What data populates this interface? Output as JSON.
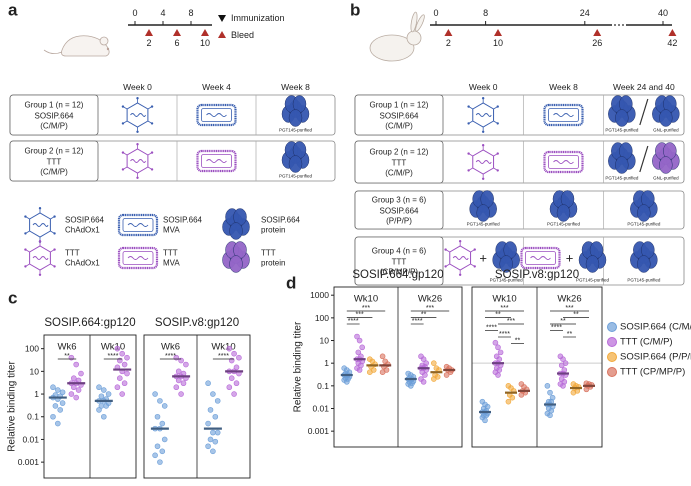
{
  "panel_a": {
    "label": "a",
    "immunization": [
      0,
      4,
      8
    ],
    "bleed": [
      2,
      6,
      10
    ],
    "legend": [
      "Immunization",
      "Bleed"
    ],
    "headers": [
      "Week 0",
      "Week 4",
      "Week 8"
    ],
    "groups": [
      {
        "name": "Group 1 (n = 12)",
        "vaccine": "SOSIP.664",
        "regimen": "(C/M/P)",
        "color": "#3a5fb0",
        "cells": [
          [],
          [],
          [
            "PGT145-purified"
          ]
        ]
      },
      {
        "name": "Group 2 (n = 12)",
        "vaccine": "TTT",
        "regimen": "(C/M/P)",
        "color": "#9b4fc0",
        "cells": [
          [],
          [],
          [
            "PGT145-purified"
          ]
        ]
      }
    ],
    "key": [
      {
        "line1": "SOSIP.664",
        "line2": "ChAdOx1"
      },
      {
        "line1": "SOSIP.664",
        "line2": "MVA"
      },
      {
        "line1": "SOSIP.664",
        "line2": "protein"
      },
      {
        "line1": "TTT",
        "line2": "ChAdOx1"
      },
      {
        "line1": "TTT",
        "line2": "MVA"
      },
      {
        "line1": "TTT",
        "line2": "protein"
      }
    ]
  },
  "panel_b": {
    "label": "b",
    "immunization": [
      0,
      8,
      24,
      40
    ],
    "bleed": [
      2,
      10,
      26,
      42
    ],
    "headers": [
      "Week 0",
      "Week 8",
      "Week 24 and 40"
    ],
    "combo_sign": "+",
    "groups": [
      {
        "name": "Group 1 (n = 12)",
        "vaccine": "SOSIP.664",
        "regimen": "(C/M/P)",
        "color": "#3a5fb0",
        "cells": [
          [],
          [],
          [
            "PGT145-purified",
            "GNL-purified"
          ]
        ]
      },
      {
        "name": "Group 2 (n = 12)",
        "vaccine": "TTT",
        "regimen": "(C/M/P)",
        "color": "#9b4fc0",
        "cells": [
          [],
          [],
          [
            "PGT145-purified",
            "GNL-purified"
          ]
        ]
      },
      {
        "name": "Group 3 (n = 6)",
        "vaccine": "SOSIP.664",
        "regimen": "(P/P/P)",
        "color": "#e08a1e",
        "cells": [
          [
            "PGT145-purified"
          ],
          [
            "PGT145-purified"
          ],
          [
            "PGT145-purified"
          ]
        ]
      },
      {
        "name": "Group 4 (n = 6)",
        "vaccine": "TTT",
        "regimen": "(CP/MP/P)",
        "color": "#b04030",
        "cells": [
          [
            "PGT145-purified"
          ],
          [
            "PGT145-purified"
          ],
          [
            "PGT145-purified"
          ]
        ]
      }
    ]
  },
  "panel_c": {
    "label": "c"
  },
  "panel_d": {
    "label": "d"
  },
  "chart_data": [
    {
      "type": "dot",
      "title": "SOSIP.664:gp120",
      "ylabel": "Relative binding titer",
      "log": true,
      "ylim": [
        0.0002,
        400
      ],
      "yticks": [
        0.001,
        0.01,
        0.1,
        1,
        10,
        100
      ],
      "categories": [
        "Wk6",
        "Wk10"
      ],
      "series": [
        {
          "color": "#6d9fd8",
          "values": [
            [
              2,
              1.5,
              1.2,
              0.9,
              0.8,
              0.7,
              0.6,
              0.4,
              0.3,
              0.2,
              0.1,
              0.05
            ],
            [
              2,
              1.5,
              1,
              0.8,
              0.6,
              0.5,
              0.5,
              0.4,
              0.3,
              0.3,
              0.2,
              0.1
            ]
          ],
          "medians": [
            0.7,
            0.5
          ]
        },
        {
          "color": "#b86ad8",
          "values": [
            [
              40,
              20,
              8,
              5,
              4,
              3,
              3,
              2.5,
              2,
              1.5,
              1,
              0.7
            ],
            [
              100,
              60,
              40,
              30,
              20,
              15,
              10,
              8,
              5,
              3,
              2,
              1
            ]
          ],
          "medians": [
            3,
            12
          ]
        }
      ],
      "significance": [
        {
          "category": 0,
          "from": 0,
          "to": 1,
          "text": "**"
        },
        {
          "category": 1,
          "from": 0,
          "to": 1,
          "text": "****"
        }
      ]
    },
    {
      "type": "dot",
      "title": "SOSIP.v8:gp120",
      "log": true,
      "ylim": [
        0.0002,
        400
      ],
      "categories": [
        "Wk6",
        "Wk10"
      ],
      "series": [
        {
          "color": "#6d9fd8",
          "values": [
            [
              1,
              0.5,
              0.3,
              0.1,
              0.05,
              0.03,
              0.03,
              0.01,
              0.005,
              0.003,
              0.002,
              0.001
            ],
            [
              3,
              1,
              0.5,
              0.2,
              0.1,
              0.05,
              0.02,
              0.02,
              0.01,
              0.008,
              0.005,
              0.003
            ]
          ],
          "medians": [
            0.03,
            0.03
          ]
        },
        {
          "color": "#b86ad8",
          "values": [
            [
              40,
              30,
              20,
              10,
              8,
              6,
              6,
              5,
              4,
              3,
              2,
              1
            ],
            [
              100,
              60,
              40,
              30,
              15,
              10,
              10,
              8,
              5,
              3,
              2,
              1
            ]
          ],
          "medians": [
            6,
            10
          ]
        }
      ],
      "significance": [
        {
          "category": 0,
          "from": 0,
          "to": 1,
          "text": "****"
        },
        {
          "category": 1,
          "from": 0,
          "to": 1,
          "text": "****"
        }
      ]
    },
    {
      "type": "dot",
      "title": "SOSIP.664:gp120",
      "ylabel": "Relative binding titer",
      "log": true,
      "ylim": [
        0.0002,
        2300
      ],
      "yticks": [
        0.001,
        0.01,
        0.1,
        1,
        10,
        100,
        1000
      ],
      "categories": [
        "Wk10",
        "Wk26"
      ],
      "series": [
        {
          "name": "SOSIP.664 (C/M/P)",
          "color": "#6d9fd8",
          "values": [
            [
              0.6,
              0.5,
              0.4,
              0.35,
              0.3,
              0.3,
              0.28,
              0.25,
              0.22,
              0.2,
              0.18,
              0.15
            ],
            [
              0.35,
              0.3,
              0.25,
              0.22,
              0.2,
              0.2,
              0.18,
              0.16,
              0.15,
              0.13,
              0.12,
              0.1
            ]
          ],
          "medians": [
            0.3,
            0.2
          ]
        },
        {
          "name": "TTT (C/M/P)",
          "color": "#b86ad8",
          "values": [
            [
              15,
              10,
              5,
              3,
              2,
              1.5,
              1.5,
              1.2,
              1,
              0.8,
              0.6,
              0.5
            ],
            [
              2,
              1.5,
              1,
              0.8,
              0.7,
              0.6,
              0.6,
              0.5,
              0.4,
              0.3,
              0.2,
              0.15
            ]
          ],
          "medians": [
            1.5,
            0.6
          ]
        },
        {
          "name": "SOSIP.664 (P/P/P)",
          "color": "#f2a93b",
          "values": [
            [
              1.5,
              1.2,
              0.9,
              0.7,
              0.5,
              0.4
            ],
            [
              1,
              0.6,
              0.5,
              0.3,
              0.25,
              0.2
            ]
          ],
          "medians": [
            0.8,
            0.4
          ]
        },
        {
          "name": "TTT (CP/MP/P)",
          "color": "#d9735f",
          "values": [
            [
              2,
              1.2,
              0.9,
              0.7,
              0.5,
              0.4
            ],
            [
              0.7,
              0.6,
              0.5,
              0.5,
              0.4,
              0.3
            ]
          ],
          "medians": [
            0.8,
            0.5
          ]
        }
      ],
      "significance": [
        {
          "category": 0,
          "from": 0,
          "to": 3,
          "text": "***"
        },
        {
          "category": 0,
          "from": 0,
          "to": 2,
          "text": "***"
        },
        {
          "category": 0,
          "from": 0,
          "to": 1,
          "text": "****"
        },
        {
          "category": 1,
          "from": 0,
          "to": 3,
          "text": "***"
        },
        {
          "category": 1,
          "from": 0,
          "to": 2,
          "text": "**"
        },
        {
          "category": 1,
          "from": 0,
          "to": 1,
          "text": "****"
        }
      ]
    },
    {
      "type": "dot",
      "title": "SOSIP.v8:gp120",
      "log": true,
      "ylim": [
        0.0002,
        2300
      ],
      "hline": 1,
      "categories": [
        "Wk10",
        "Wk26"
      ],
      "series": [
        {
          "color": "#6d9fd8",
          "values": [
            [
              0.02,
              0.015,
              0.012,
              0.01,
              0.008,
              0.007,
              0.007,
              0.006,
              0.005,
              0.005,
              0.004,
              0.003
            ],
            [
              0.1,
              0.05,
              0.03,
              0.02,
              0.02,
              0.015,
              0.015,
              0.012,
              0.01,
              0.008,
              0.006,
              0.005
            ]
          ],
          "medians": [
            0.007,
            0.015
          ]
        },
        {
          "color": "#b86ad8",
          "values": [
            [
              8,
              5,
              3,
              2,
              1.5,
              1,
              1,
              0.8,
              0.6,
              0.5,
              0.4,
              0.3
            ],
            [
              2,
              1.5,
              1,
              0.8,
              0.5,
              0.35,
              0.35,
              0.3,
              0.2,
              0.15,
              0.12,
              0.1
            ]
          ],
          "medians": [
            1,
            0.35
          ]
        },
        {
          "color": "#f2a93b",
          "values": [
            [
              0.1,
              0.08,
              0.06,
              0.04,
              0.03,
              0.02
            ],
            [
              0.12,
              0.1,
              0.09,
              0.08,
              0.06,
              0.05
            ]
          ],
          "medians": [
            0.05,
            0.08
          ]
        },
        {
          "color": "#d9735f",
          "values": [
            [
              0.12,
              0.09,
              0.07,
              0.06,
              0.05,
              0.04
            ],
            [
              0.13,
              0.12,
              0.11,
              0.1,
              0.09,
              0.07
            ]
          ],
          "medians": [
            0.06,
            0.1
          ]
        }
      ],
      "significance": [
        {
          "category": 0,
          "from": 0,
          "to": 3,
          "text": "***"
        },
        {
          "category": 0,
          "from": 0,
          "to": 2,
          "text": "**"
        },
        {
          "category": 0,
          "from": 1,
          "to": 3,
          "text": "***"
        },
        {
          "category": 0,
          "from": 0,
          "to": 1,
          "text": "****"
        },
        {
          "category": 0,
          "from": 1,
          "to": 2,
          "text": "****"
        },
        {
          "category": 0,
          "from": 2,
          "to": 3,
          "text": "**"
        },
        {
          "category": 1,
          "from": 0,
          "to": 3,
          "text": "***"
        },
        {
          "category": 1,
          "from": 1,
          "to": 3,
          "text": "**"
        },
        {
          "category": 1,
          "from": 0,
          "to": 2,
          "text": "**"
        },
        {
          "category": 1,
          "from": 0,
          "to": 1,
          "text": "****"
        },
        {
          "category": 1,
          "from": 1,
          "to": 2,
          "text": "**"
        }
      ]
    }
  ]
}
